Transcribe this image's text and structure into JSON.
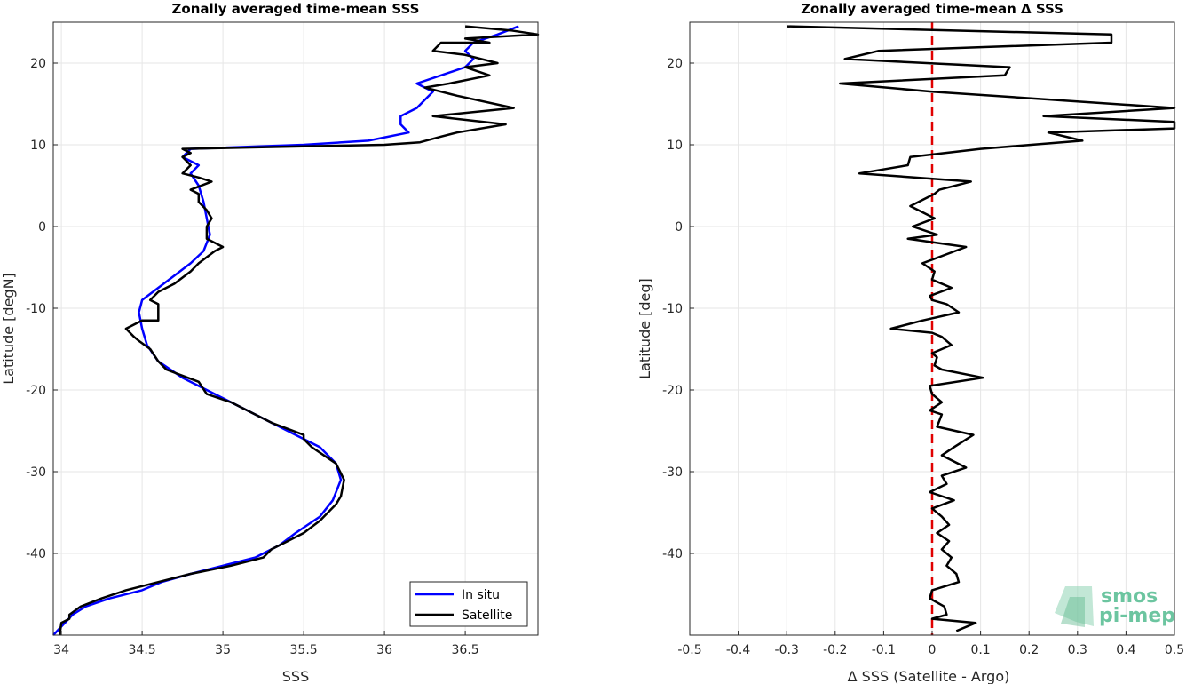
{
  "chart_data": [
    {
      "type": "line",
      "title": "Zonally averaged time-mean SSS",
      "xlabel": "SSS",
      "ylabel": "Latitude [degN]",
      "xlim": [
        33.95,
        36.95
      ],
      "ylim": [
        -50,
        25
      ],
      "xticks": [
        34,
        34.5,
        35,
        35.5,
        36,
        36.5
      ],
      "xtick_labels": [
        "34",
        "34.5",
        "35",
        "35.5",
        "36",
        "36.5"
      ],
      "yticks": [
        -40,
        -30,
        -20,
        -10,
        0,
        10,
        20
      ],
      "ytick_labels": [
        "-40",
        "-30",
        "-20",
        "-10",
        "0",
        "10",
        "20"
      ],
      "grid": true,
      "legend": "bottom-right",
      "series": [
        {
          "name": "In situ",
          "color": "#0000ff",
          "points": [
            [
              33.95,
              -50
            ],
            [
              34.07,
              -47.5
            ],
            [
              34.15,
              -46.5
            ],
            [
              34.3,
              -45.5
            ],
            [
              34.5,
              -44.5
            ],
            [
              34.62,
              -43.5
            ],
            [
              34.8,
              -42.5
            ],
            [
              35.0,
              -41.5
            ],
            [
              35.2,
              -40.5
            ],
            [
              35.35,
              -39
            ],
            [
              35.45,
              -37.5
            ],
            [
              35.6,
              -35.5
            ],
            [
              35.68,
              -33.5
            ],
            [
              35.73,
              -31
            ],
            [
              35.7,
              -29
            ],
            [
              35.6,
              -27
            ],
            [
              35.45,
              -25.5
            ],
            [
              35.3,
              -24
            ],
            [
              35.1,
              -22
            ],
            [
              34.95,
              -20.5
            ],
            [
              34.75,
              -18.5
            ],
            [
              34.6,
              -16.5
            ],
            [
              34.53,
              -14.5
            ],
            [
              34.5,
              -12.5
            ],
            [
              34.48,
              -10.5
            ],
            [
              34.5,
              -9
            ],
            [
              34.6,
              -7.5
            ],
            [
              34.7,
              -6
            ],
            [
              34.8,
              -4.5
            ],
            [
              34.88,
              -3
            ],
            [
              34.92,
              -1
            ],
            [
              34.9,
              1
            ],
            [
              34.88,
              3
            ],
            [
              34.85,
              5
            ],
            [
              34.8,
              6.5
            ],
            [
              34.85,
              7.5
            ],
            [
              34.75,
              8.5
            ],
            [
              34.8,
              9.5
            ],
            [
              35.5,
              10
            ],
            [
              35.9,
              10.5
            ],
            [
              36.15,
              11.5
            ],
            [
              36.1,
              12.5
            ],
            [
              36.1,
              13.5
            ],
            [
              36.2,
              14.5
            ],
            [
              36.25,
              15.5
            ],
            [
              36.3,
              16.5
            ],
            [
              36.2,
              17.5
            ],
            [
              36.35,
              18.5
            ],
            [
              36.5,
              19.5
            ],
            [
              36.55,
              20.5
            ],
            [
              36.5,
              21.5
            ],
            [
              36.55,
              22.5
            ],
            [
              36.7,
              23.5
            ],
            [
              36.83,
              24.5
            ]
          ]
        },
        {
          "name": "Satellite",
          "color": "#000000",
          "points": [
            [
              33.99,
              -50
            ],
            [
              34.0,
              -48.5
            ],
            [
              34.05,
              -48
            ],
            [
              34.05,
              -47.5
            ],
            [
              34.12,
              -46.5
            ],
            [
              34.25,
              -45.5
            ],
            [
              34.4,
              -44.5
            ],
            [
              34.6,
              -43.5
            ],
            [
              34.8,
              -42.5
            ],
            [
              35.05,
              -41.5
            ],
            [
              35.25,
              -40.5
            ],
            [
              35.3,
              -39.5
            ],
            [
              35.4,
              -38.5
            ],
            [
              35.5,
              -37.5
            ],
            [
              35.6,
              -36
            ],
            [
              35.7,
              -34
            ],
            [
              35.73,
              -33
            ],
            [
              35.75,
              -31
            ],
            [
              35.7,
              -29
            ],
            [
              35.55,
              -27
            ],
            [
              35.5,
              -26
            ],
            [
              35.5,
              -25.5
            ],
            [
              35.3,
              -24
            ],
            [
              35.1,
              -22
            ],
            [
              35.05,
              -21.5
            ],
            [
              34.9,
              -20.5
            ],
            [
              34.85,
              -19
            ],
            [
              34.65,
              -17.5
            ],
            [
              34.6,
              -16.5
            ],
            [
              34.55,
              -15
            ],
            [
              34.48,
              -14
            ],
            [
              34.45,
              -13.5
            ],
            [
              34.4,
              -12.5
            ],
            [
              34.5,
              -11.5
            ],
            [
              34.6,
              -11.5
            ],
            [
              34.6,
              -10.5
            ],
            [
              34.6,
              -9.5
            ],
            [
              34.55,
              -9
            ],
            [
              34.6,
              -8
            ],
            [
              34.7,
              -7
            ],
            [
              34.8,
              -5.5
            ],
            [
              34.85,
              -4.5
            ],
            [
              34.95,
              -3
            ],
            [
              35.0,
              -2.5
            ],
            [
              34.9,
              -1.5
            ],
            [
              34.9,
              0
            ],
            [
              34.93,
              1
            ],
            [
              34.9,
              2
            ],
            [
              34.85,
              3
            ],
            [
              34.85,
              4
            ],
            [
              34.8,
              4.5
            ],
            [
              34.93,
              5.5
            ],
            [
              34.85,
              6
            ],
            [
              34.75,
              6.5
            ],
            [
              34.8,
              7.5
            ],
            [
              34.75,
              8.5
            ],
            [
              34.8,
              9
            ],
            [
              34.75,
              9.5
            ],
            [
              35.5,
              9.8
            ],
            [
              36.0,
              10
            ],
            [
              36.22,
              10.3
            ],
            [
              36.35,
              11
            ],
            [
              36.45,
              11.5
            ],
            [
              36.75,
              12.5
            ],
            [
              36.3,
              13.5
            ],
            [
              36.8,
              14.5
            ],
            [
              36.45,
              16
            ],
            [
              36.25,
              17
            ],
            [
              36.4,
              17.5
            ],
            [
              36.65,
              18.5
            ],
            [
              36.5,
              19.5
            ],
            [
              36.7,
              20
            ],
            [
              36.5,
              21
            ],
            [
              36.3,
              21.5
            ],
            [
              36.35,
              22.5
            ],
            [
              36.65,
              22.5
            ],
            [
              36.5,
              23
            ],
            [
              36.95,
              23.5
            ],
            [
              36.78,
              24
            ],
            [
              36.5,
              24.5
            ]
          ]
        }
      ]
    },
    {
      "type": "line",
      "title": "Zonally averaged time-mean Δ SSS",
      "xlabel": "Δ SSS (Satellite - Argo)",
      "ylabel": "Latitude [deg]",
      "xlim": [
        -0.5,
        0.5
      ],
      "ylim": [
        -50,
        25
      ],
      "xticks": [
        -0.5,
        -0.4,
        -0.3,
        -0.2,
        -0.1,
        0,
        0.1,
        0.2,
        0.3,
        0.4,
        0.5
      ],
      "xtick_labels": [
        "-0.5",
        "-0.4",
        "-0.3",
        "-0.2",
        "-0.1",
        "0",
        "0.1",
        "0.2",
        "0.3",
        "0.4",
        "0.5"
      ],
      "yticks": [
        -40,
        -30,
        -20,
        -10,
        0,
        10,
        20
      ],
      "ytick_labels": [
        "-40",
        "-30",
        "-20",
        "-10",
        "0",
        "10",
        "20"
      ],
      "grid": true,
      "reference_line": {
        "x": 0,
        "color": "#e00000",
        "style": "dashed"
      },
      "series": [
        {
          "color": "#000000",
          "points": [
            [
              0.05,
              -49.5
            ],
            [
              0.09,
              -48.5
            ],
            [
              0.0,
              -48
            ],
            [
              0.03,
              -47.5
            ],
            [
              0.025,
              -46.5
            ],
            [
              -0.005,
              -45.5
            ],
            [
              0.0,
              -44.5
            ],
            [
              0.055,
              -43.5
            ],
            [
              0.05,
              -42.5
            ],
            [
              0.03,
              -41.5
            ],
            [
              0.04,
              -40.5
            ],
            [
              0.02,
              -39.5
            ],
            [
              0.035,
              -38.5
            ],
            [
              0.01,
              -37.5
            ],
            [
              0.035,
              -36.5
            ],
            [
              0.02,
              -35.5
            ],
            [
              0.0,
              -34.5
            ],
            [
              0.045,
              -33.5
            ],
            [
              -0.005,
              -32.5
            ],
            [
              0.03,
              -31.5
            ],
            [
              0.02,
              -30.5
            ],
            [
              0.07,
              -29.5
            ],
            [
              0.02,
              -28
            ],
            [
              0.045,
              -27
            ],
            [
              0.085,
              -25.5
            ],
            [
              0.01,
              -24.5
            ],
            [
              0.02,
              -23
            ],
            [
              -0.005,
              -22.5
            ],
            [
              0.02,
              -21.5
            ],
            [
              0.0,
              -20.5
            ],
            [
              -0.005,
              -19.5
            ],
            [
              0.105,
              -18.5
            ],
            [
              0.02,
              -17.5
            ],
            [
              0.005,
              -17
            ],
            [
              0.01,
              -16
            ],
            [
              0.0,
              -15.5
            ],
            [
              0.04,
              -14.5
            ],
            [
              0.02,
              -13.5
            ],
            [
              0.0,
              -13
            ],
            [
              -0.085,
              -12.5
            ],
            [
              -0.02,
              -11.5
            ],
            [
              0.055,
              -10.5
            ],
            [
              0.03,
              -9.5
            ],
            [
              0.0,
              -9
            ],
            [
              -0.005,
              -8.5
            ],
            [
              0.04,
              -7.5
            ],
            [
              0.0,
              -6.5
            ],
            [
              0.005,
              -5.5
            ],
            [
              -0.02,
              -4.5
            ],
            [
              0.07,
              -2.5
            ],
            [
              -0.05,
              -1.5
            ],
            [
              0.01,
              -1
            ],
            [
              -0.04,
              0
            ],
            [
              0.005,
              1
            ],
            [
              -0.045,
              2.5
            ],
            [
              0.005,
              4
            ],
            [
              0.015,
              4.5
            ],
            [
              0.08,
              5.5
            ],
            [
              -0.15,
              6.5
            ],
            [
              -0.05,
              7.5
            ],
            [
              -0.045,
              8.5
            ],
            [
              0.1,
              9.5
            ],
            [
              0.31,
              10.5
            ],
            [
              0.24,
              11.5
            ],
            [
              0.5,
              12
            ],
            [
              0.5,
              12.8
            ],
            [
              0.23,
              13.5
            ],
            [
              0.5,
              14.5
            ],
            [
              0.0,
              16.5
            ],
            [
              -0.19,
              17.5
            ],
            [
              0.15,
              18.5
            ],
            [
              0.16,
              19.5
            ],
            [
              -0.18,
              20.5
            ],
            [
              -0.11,
              21.5
            ],
            [
              0.37,
              22.5
            ],
            [
              0.37,
              23.5
            ],
            [
              -0.3,
              24.5
            ]
          ]
        }
      ]
    }
  ],
  "logo": {
    "line1": "smos",
    "line2": "pi-mep"
  }
}
